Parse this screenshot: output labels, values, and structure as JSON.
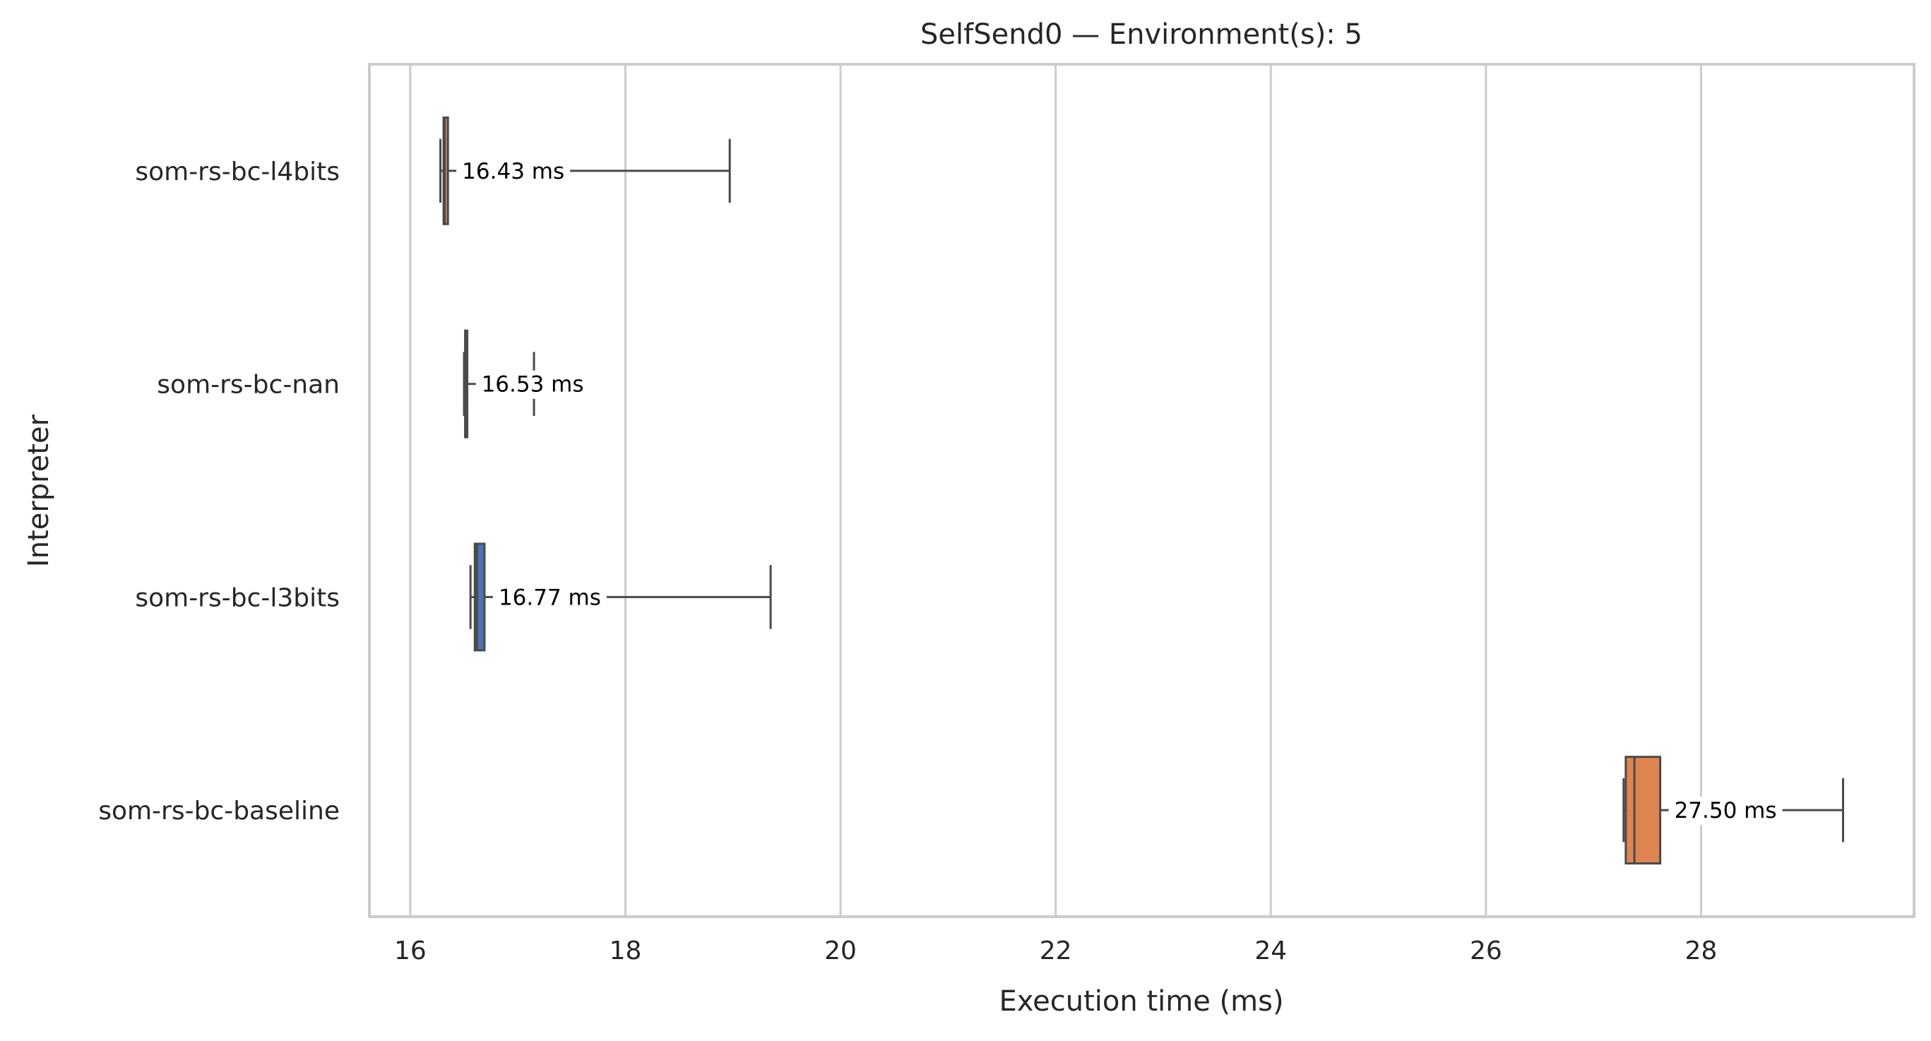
{
  "chart_data": {
    "type": "boxplot",
    "orientation": "horizontal",
    "title": "SelfSend0 — Environment(s): 5",
    "xlabel": "Execution time (ms)",
    "ylabel": "Interpreter",
    "xlim": [
      15.62,
      29.98
    ],
    "xticks": [
      16,
      18,
      20,
      22,
      24,
      26,
      28
    ],
    "grid": "vertical",
    "categories": [
      "som-rs-bc-l4bits",
      "som-rs-bc-nan",
      "som-rs-bc-l3bits",
      "som-rs-bc-baseline"
    ],
    "series": [
      {
        "category": "som-rs-bc-l4bits",
        "whisker_low": 16.28,
        "q1": 16.31,
        "median": 16.32,
        "q3": 16.35,
        "whisker_high": 18.97,
        "color": "#dd8452",
        "annotation": "16.43 ms"
      },
      {
        "category": "som-rs-bc-nan",
        "whisker_low": 16.5,
        "q1": 16.51,
        "median": 16.52,
        "q3": 16.53,
        "whisker_high": 17.15,
        "color": "#4c72b0",
        "annotation": "16.53 ms"
      },
      {
        "category": "som-rs-bc-l3bits",
        "whisker_low": 16.56,
        "q1": 16.6,
        "median": 16.62,
        "q3": 16.69,
        "whisker_high": 19.35,
        "color": "#4c72b0",
        "annotation": "16.77 ms"
      },
      {
        "category": "som-rs-bc-baseline",
        "whisker_low": 27.28,
        "q1": 27.3,
        "median": 27.38,
        "q3": 27.62,
        "whisker_high": 29.32,
        "color": "#dd8452",
        "annotation": "27.50 ms"
      }
    ]
  }
}
